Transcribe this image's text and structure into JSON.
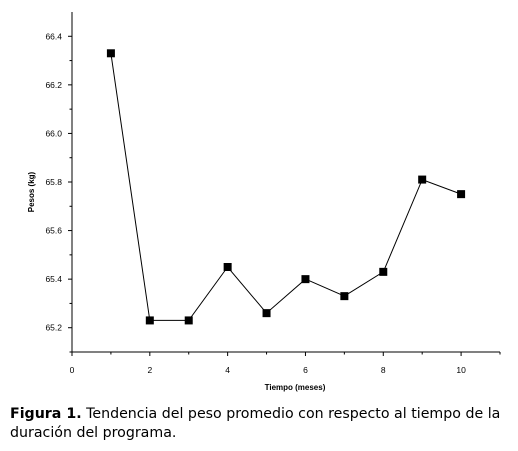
{
  "chart_data": {
    "type": "line",
    "xlabel": "Tiempo (meses)",
    "ylabel": "Pesos (kg)",
    "xlim": [
      0,
      11
    ],
    "ylim": [
      65.1,
      66.5
    ],
    "x_ticks": [
      "0",
      "2",
      "4",
      "6",
      "8",
      "10"
    ],
    "y_ticks": [
      "65.2",
      "65.4",
      "65.6",
      "65.8",
      "66.0",
      "66.2",
      "66.4"
    ],
    "marker": "square",
    "grid": false,
    "series": [
      {
        "x": [
          1,
          2,
          3,
          4,
          5,
          6,
          7,
          8,
          9,
          10
        ],
        "y": [
          66.33,
          65.23,
          65.23,
          65.45,
          65.26,
          65.4,
          65.33,
          65.43,
          65.81,
          65.75
        ]
      }
    ]
  },
  "caption": {
    "label": "Figura 1.",
    "text": " Tendencia del peso promedio con respecto al tiempo de la duración del programa."
  }
}
